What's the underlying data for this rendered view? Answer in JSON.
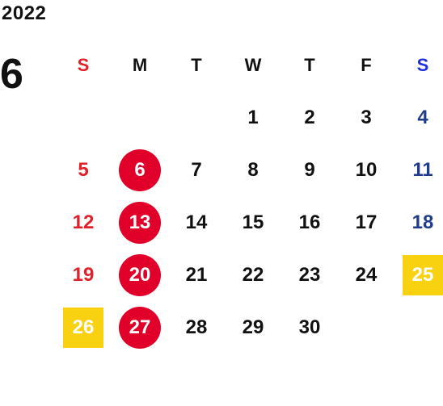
{
  "calendar": {
    "year": "2022",
    "month": "6",
    "weekdays": [
      "S",
      "M",
      "T",
      "W",
      "T",
      "F",
      "S"
    ],
    "days": [
      {
        "label": ""
      },
      {
        "label": ""
      },
      {
        "label": ""
      },
      {
        "label": "1"
      },
      {
        "label": "2"
      },
      {
        "label": "3"
      },
      {
        "label": "4"
      },
      {
        "label": "5"
      },
      {
        "label": "6",
        "highlight": "circle"
      },
      {
        "label": "7"
      },
      {
        "label": "8"
      },
      {
        "label": "9"
      },
      {
        "label": "10"
      },
      {
        "label": "11"
      },
      {
        "label": "12"
      },
      {
        "label": "13",
        "highlight": "circle"
      },
      {
        "label": "14"
      },
      {
        "label": "15"
      },
      {
        "label": "16"
      },
      {
        "label": "17"
      },
      {
        "label": "18"
      },
      {
        "label": "19"
      },
      {
        "label": "20",
        "highlight": "circle"
      },
      {
        "label": "21"
      },
      {
        "label": "22"
      },
      {
        "label": "23"
      },
      {
        "label": "24"
      },
      {
        "label": "25",
        "highlight": "square"
      },
      {
        "label": "26",
        "highlight": "square"
      },
      {
        "label": "27",
        "highlight": "circle"
      },
      {
        "label": "28"
      },
      {
        "label": "29"
      },
      {
        "label": "30"
      }
    ]
  },
  "colors": {
    "sunday": "#e0202a",
    "saturday_header": "#1f2ee0",
    "saturday": "#1f3c8c",
    "circle_highlight": "#e0002a",
    "square_highlight": "#f8d210",
    "text": "#111111"
  }
}
